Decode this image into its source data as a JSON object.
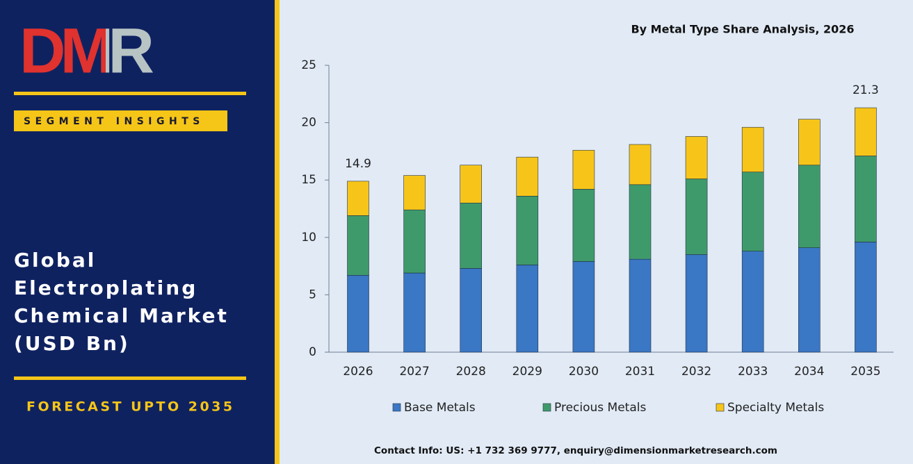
{
  "sidebar": {
    "logo": "DMR",
    "badge": "SEGMENT INSIGHTS",
    "title_lines": [
      "Global",
      "Electroplating",
      "Chemical Market",
      "(USD Bn)"
    ],
    "forecast": "FORECAST UPTO 2035"
  },
  "chart_data": {
    "type": "stacked_bar",
    "title": "By Metal Type Share Analysis, 2026",
    "categories": [
      "2026",
      "2027",
      "2028",
      "2029",
      "2030",
      "2031",
      "2032",
      "2033",
      "2034",
      "2035"
    ],
    "series": [
      {
        "name": "Base Metals",
        "color": "#3a77c4",
        "values": [
          6.7,
          6.9,
          7.3,
          7.6,
          7.9,
          8.1,
          8.5,
          8.8,
          9.1,
          9.6
        ]
      },
      {
        "name": "Precious Metals",
        "color": "#3f9a6b",
        "values": [
          5.2,
          5.5,
          5.7,
          6.0,
          6.3,
          6.5,
          6.6,
          6.9,
          7.2,
          7.5
        ]
      },
      {
        "name": "Specialty Metals",
        "color": "#f7c51a",
        "values": [
          3.0,
          3.0,
          3.3,
          3.4,
          3.4,
          3.5,
          3.7,
          3.9,
          4.0,
          4.2
        ]
      }
    ],
    "total_labels": [
      {
        "category": "2026",
        "value": 14.9
      },
      {
        "category": "2035",
        "value": 21.3
      }
    ],
    "ylim": [
      0,
      25
    ],
    "yticks": [
      0,
      5,
      10,
      15,
      20,
      25
    ],
    "legend": "bottom"
  },
  "footer": "Contact Info: US: +1 732 369 9777, enquiry@dimensionmarketresearch.com"
}
